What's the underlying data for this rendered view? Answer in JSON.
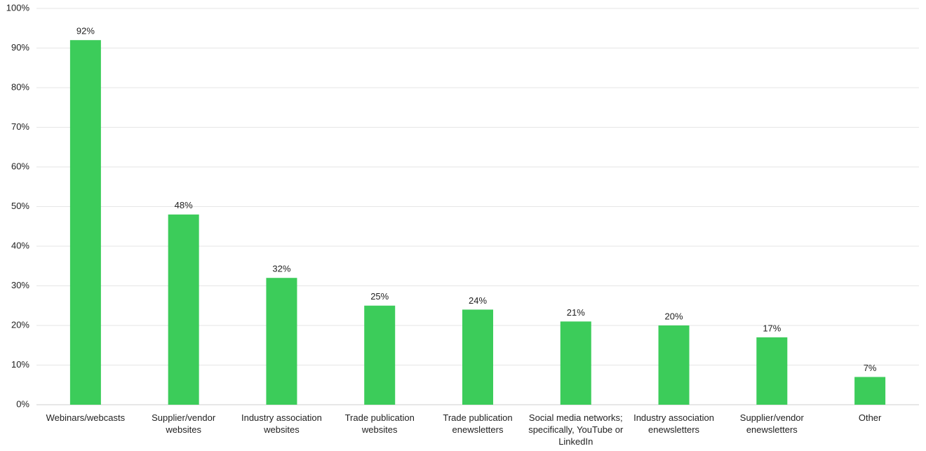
{
  "chart_data": {
    "type": "bar",
    "categories": [
      "Webinars/webcasts",
      "Supplier/vendor websites",
      "Industry association websites",
      "Trade publication websites",
      "Trade publication enewsletters",
      "Social media networks; specifically, YouTube or LinkedIn",
      "Industry association enewsletters",
      "Supplier/vendor enewsletters",
      "Other"
    ],
    "values": [
      92,
      48,
      32,
      25,
      24,
      21,
      20,
      17,
      7
    ],
    "value_labels": [
      "92%",
      "48%",
      "32%",
      "25%",
      "24%",
      "21%",
      "20%",
      "17%",
      "7%"
    ],
    "color": "#3ccc5a",
    "ylim": [
      0,
      100
    ],
    "yticks": [
      {
        "value": 0,
        "label": "0%"
      },
      {
        "value": 10,
        "label": "10%"
      },
      {
        "value": 20,
        "label": "20%"
      },
      {
        "value": 30,
        "label": "30%"
      },
      {
        "value": 40,
        "label": "40%"
      },
      {
        "value": 50,
        "label": "50%"
      },
      {
        "value": 60,
        "label": "60%"
      },
      {
        "value": 70,
        "label": "70%"
      },
      {
        "value": 80,
        "label": "80%"
      },
      {
        "value": 90,
        "label": "90%"
      },
      {
        "value": 100,
        "label": "100%"
      }
    ],
    "grid": true
  }
}
